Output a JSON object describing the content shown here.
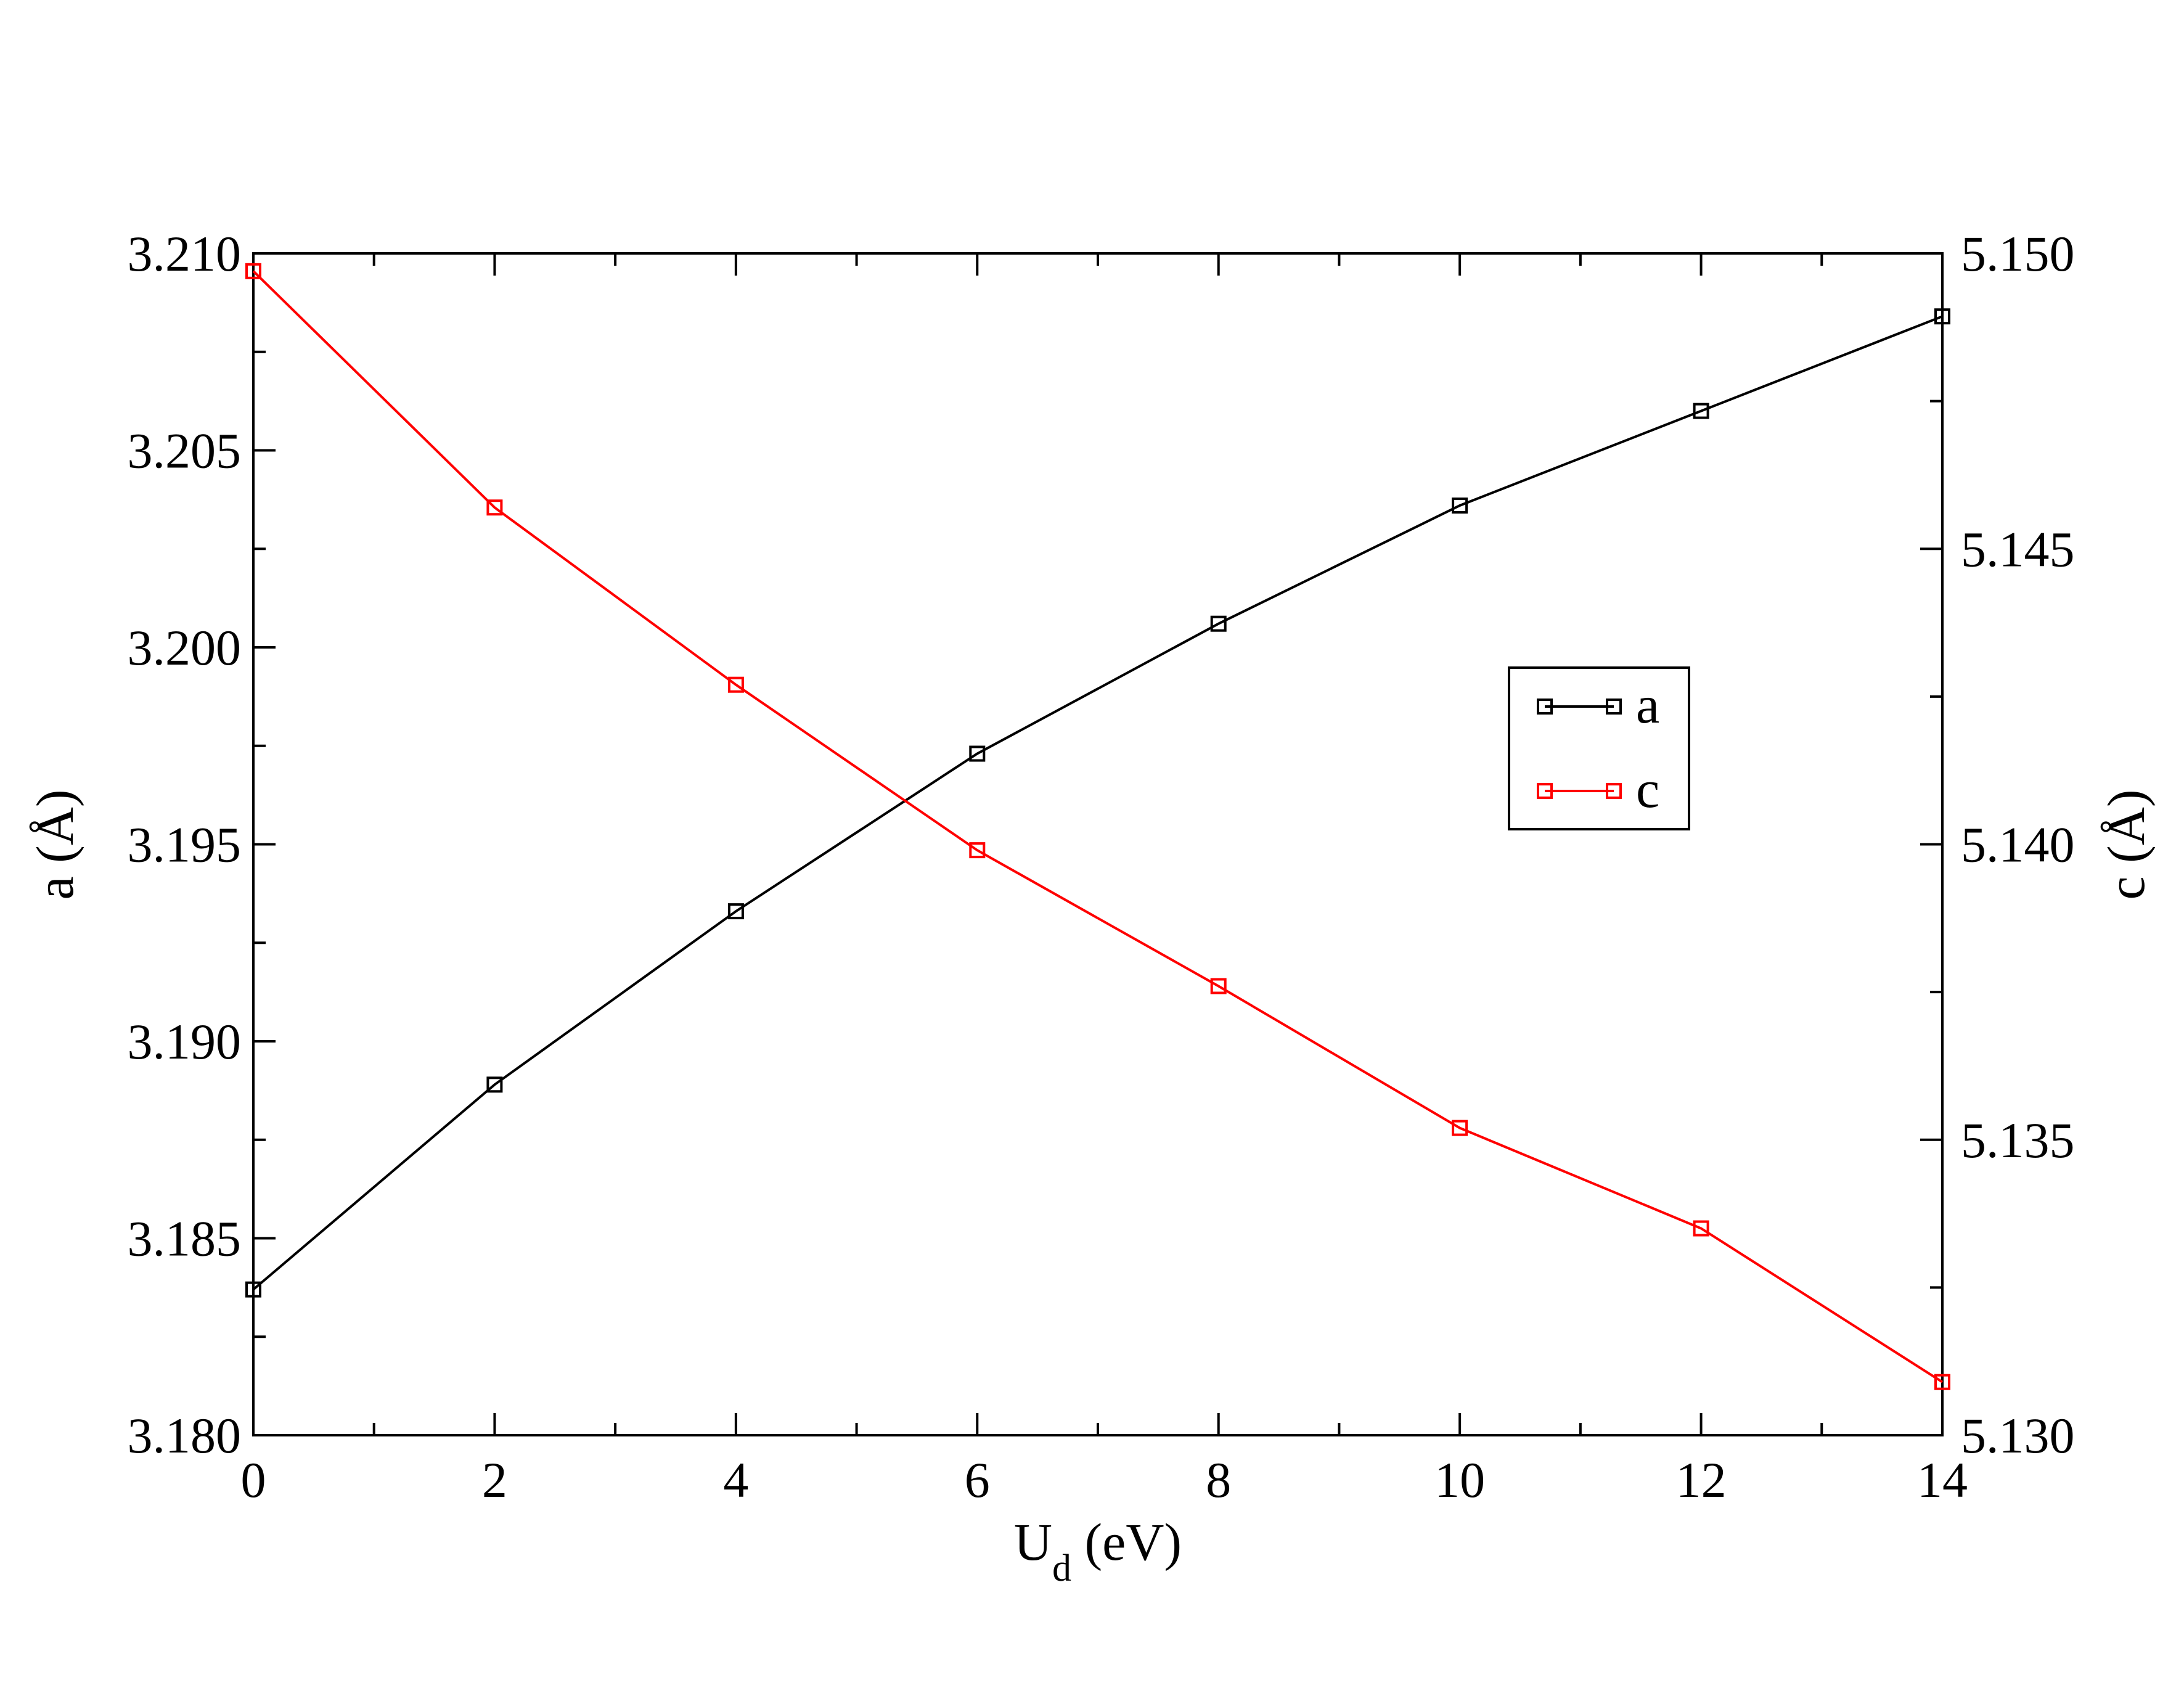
{
  "chart_data": {
    "type": "line",
    "title": "",
    "x": [
      0,
      2,
      4,
      6,
      8,
      10,
      12,
      14
    ],
    "xlim": [
      0,
      14
    ],
    "x_ticks": [
      "0",
      "2",
      "4",
      "6",
      "8",
      "10",
      "12",
      "14"
    ],
    "xlabel": {
      "main": "U",
      "sub": "d",
      "rest": " (eV)"
    },
    "ylabel_left": "a (Å)",
    "ylabel_right": "c (Å)",
    "ylim_left": [
      3.18,
      3.21
    ],
    "ylim_right": [
      5.13,
      5.15
    ],
    "y_ticks_left": [
      "3.180",
      "3.185",
      "3.190",
      "3.195",
      "3.200",
      "3.205",
      "3.210"
    ],
    "y_ticks_right": [
      "5.130",
      "5.135",
      "5.140",
      "5.145",
      "5.150"
    ],
    "grid": false,
    "legend_position": "center-right",
    "series": [
      {
        "name": "a",
        "axis": "left",
        "color": "#000000",
        "marker": "square-open",
        "values": [
          3.1837,
          3.1889,
          3.1933,
          3.1973,
          3.2006,
          3.2036,
          3.206,
          3.2084
        ]
      },
      {
        "name": "c",
        "axis": "right",
        "color": "#ff0000",
        "marker": "square-open",
        "values": [
          5.1497,
          5.1457,
          5.1427,
          5.1399,
          5.1376,
          5.1352,
          5.1335,
          5.1309
        ]
      }
    ]
  }
}
